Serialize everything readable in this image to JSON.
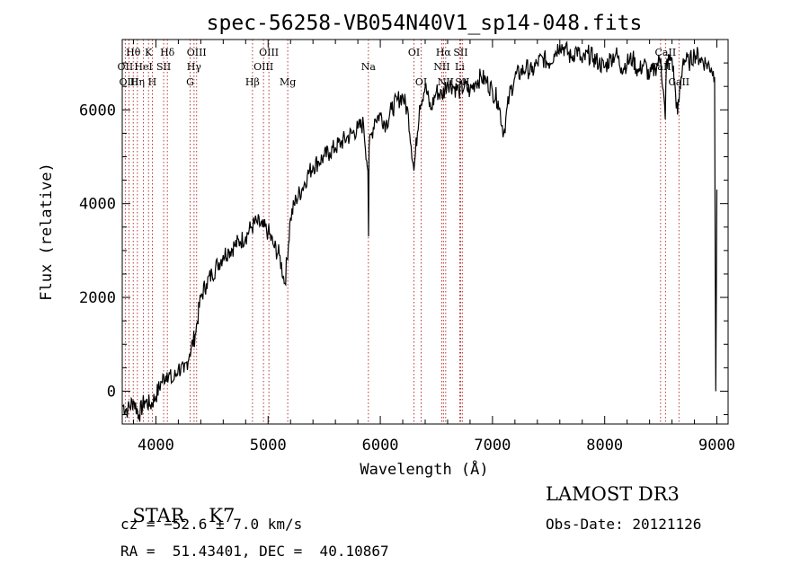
{
  "chart_data": {
    "type": "line",
    "title": "spec-56258-VB054N40V1_sp14-048.fits",
    "xlabel": "Wavelength (Å)",
    "ylabel": "Flux (relative)",
    "xlim": [
      3700,
      9100
    ],
    "ylim": [
      -700,
      7500
    ],
    "xticks": [
      4000,
      5000,
      6000,
      7000,
      8000,
      9000
    ],
    "yticks": [
      0,
      2000,
      4000,
      6000
    ],
    "series": [
      {
        "name": "flux",
        "x": [
          3700,
          3750,
          3800,
          3850,
          3900,
          3950,
          4000,
          4050,
          4100,
          4150,
          4200,
          4250,
          4300,
          4350,
          4400,
          4450,
          4500,
          4550,
          4600,
          4650,
          4700,
          4750,
          4800,
          4850,
          4900,
          4950,
          5000,
          5050,
          5100,
          5150,
          5200,
          5250,
          5300,
          5350,
          5400,
          5450,
          5500,
          5550,
          5600,
          5650,
          5700,
          5750,
          5800,
          5850,
          5890,
          5895,
          5900,
          5950,
          6000,
          6050,
          6100,
          6150,
          6200,
          6250,
          6300,
          6350,
          6400,
          6450,
          6500,
          6550,
          6600,
          6650,
          6700,
          6750,
          6800,
          6850,
          6900,
          6950,
          7000,
          7050,
          7100,
          7150,
          7200,
          7250,
          7300,
          7350,
          7400,
          7450,
          7500,
          7550,
          7600,
          7650,
          7700,
          7750,
          7800,
          7850,
          7900,
          7950,
          8000,
          8050,
          8100,
          8150,
          8200,
          8250,
          8300,
          8350,
          8400,
          8450,
          8500,
          8540,
          8550,
          8600,
          8650,
          8700,
          8750,
          8800,
          8850,
          8900,
          8950,
          8980,
          8990,
          9000
        ],
        "values": [
          -300,
          -400,
          -200,
          -500,
          -200,
          -300,
          -100,
          200,
          400,
          200,
          500,
          400,
          800,
          1200,
          2000,
          2300,
          2500,
          2700,
          2900,
          3000,
          3100,
          3200,
          3300,
          3500,
          3600,
          3500,
          3400,
          3100,
          2900,
          2300,
          3700,
          4100,
          4300,
          4600,
          4800,
          4900,
          5000,
          5100,
          5200,
          5300,
          5400,
          5500,
          5600,
          5700,
          4700,
          3300,
          5200,
          5800,
          5900,
          5700,
          6000,
          6200,
          6300,
          5900,
          4700,
          6100,
          6500,
          6000,
          6400,
          6300,
          6600,
          6500,
          6400,
          6500,
          6400,
          6600,
          6700,
          6600,
          6400,
          6200,
          5500,
          6300,
          6700,
          6800,
          6900,
          6800,
          7000,
          7100,
          7000,
          7200,
          7400,
          7300,
          7100,
          7300,
          7000,
          7200,
          7100,
          7000,
          6900,
          7100,
          7200,
          6900,
          7000,
          7100,
          6800,
          7000,
          6700,
          6900,
          7100,
          5800,
          7000,
          7100,
          5900,
          7100,
          7000,
          7200,
          7100,
          7000,
          6900,
          6700,
          0,
          4300
        ]
      }
    ],
    "line_markers": [
      {
        "label": "Hθ",
        "wavelength": 3798,
        "row": 1
      },
      {
        "label": "OII",
        "wavelength": 3727,
        "row": 2
      },
      {
        "label": "OIII",
        "wavelength": 3760,
        "row": 3
      },
      {
        "label": "HeI",
        "wavelength": 3889,
        "row": 2
      },
      {
        "label": "Hη",
        "wavelength": 3835,
        "row": 3
      },
      {
        "label": "K",
        "wavelength": 3934,
        "row": 1
      },
      {
        "label": "SII",
        "wavelength": 4069,
        "row": 2
      },
      {
        "label": "H",
        "wavelength": 3968,
        "row": 3
      },
      {
        "label": "Hδ",
        "wavelength": 4102,
        "row": 1
      },
      {
        "label": "OIII",
        "wavelength": 4363,
        "row": 1
      },
      {
        "label": "Hγ",
        "wavelength": 4340,
        "row": 2
      },
      {
        "label": "G",
        "wavelength": 4305,
        "row": 3
      },
      {
        "label": "Hβ",
        "wavelength": 4861,
        "row": 3
      },
      {
        "label": "OIII",
        "wavelength": 5007,
        "row": 1
      },
      {
        "label": "OIII",
        "wavelength": 4959,
        "row": 2
      },
      {
        "label": "Mg",
        "wavelength": 5175,
        "row": 3
      },
      {
        "label": "Na",
        "wavelength": 5894,
        "row": 2
      },
      {
        "label": "OI",
        "wavelength": 6300,
        "row": 1
      },
      {
        "label": "OI",
        "wavelength": 6364,
        "row": 3
      },
      {
        "label": "Hα",
        "wavelength": 6563,
        "row": 1
      },
      {
        "label": "NII",
        "wavelength": 6548,
        "row": 2
      },
      {
        "label": "NII",
        "wavelength": 6583,
        "row": 3
      },
      {
        "label": "SII",
        "wavelength": 6716,
        "row": 1
      },
      {
        "label": "Li",
        "wavelength": 6708,
        "row": 2
      },
      {
        "label": "SII",
        "wavelength": 6731,
        "row": 3
      },
      {
        "label": "CaII",
        "wavelength": 8542,
        "row": 1
      },
      {
        "label": "CaII",
        "wavelength": 8498,
        "row": 2
      },
      {
        "label": "CaII",
        "wavelength": 8662,
        "row": 3
      }
    ],
    "marker_color": "#b22222"
  },
  "info": {
    "class": "STAR",
    "subclass": "K7",
    "survey": "LAMOST DR3",
    "cz": "cz = −52.6 ± 7.0 km/s",
    "obs_date": "Obs-Date: 20121126",
    "coords": "RA =  51.43401, DEC =  40.10867"
  }
}
